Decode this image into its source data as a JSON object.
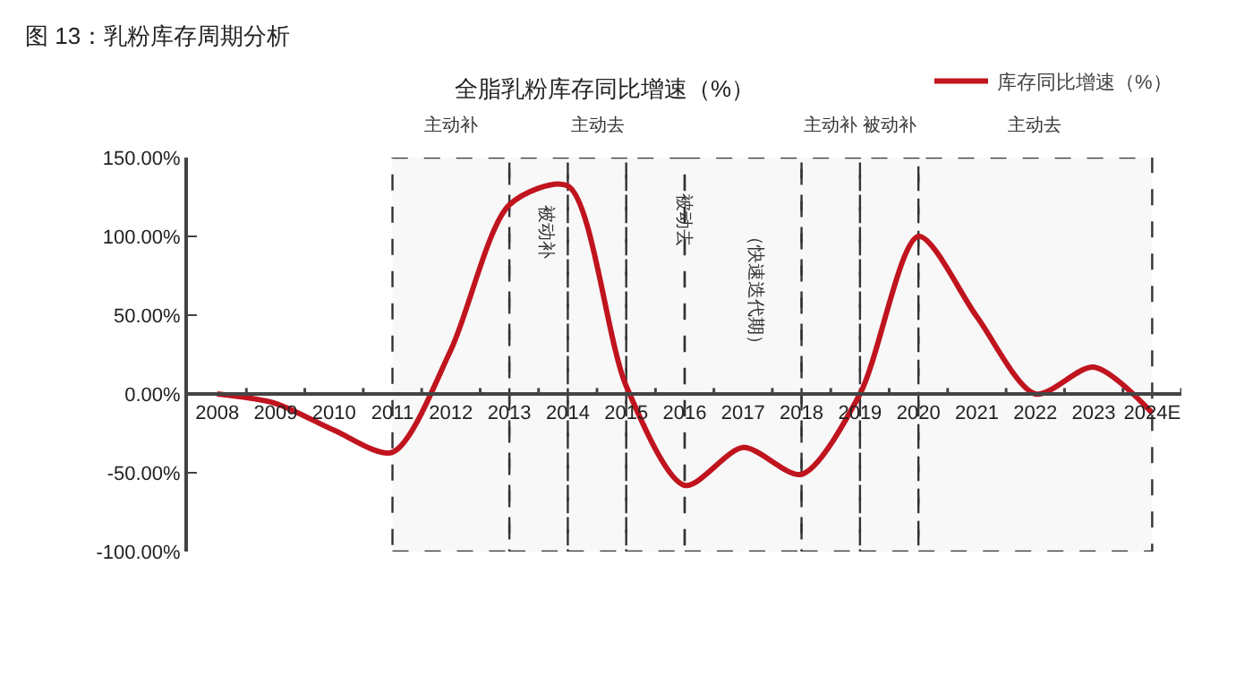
{
  "chart_data": {
    "type": "line",
    "title": "图 13：乳粉库存周期分析",
    "subtitle": "全脂乳粉库存同比增速（%）",
    "categories": [
      "2008",
      "2009",
      "2010",
      "2011",
      "2012",
      "2013",
      "2014",
      "2015",
      "2016",
      "2017",
      "2018",
      "2019",
      "2020",
      "2021",
      "2022",
      "2023",
      "2024E"
    ],
    "series": [
      {
        "name": "库存同比增速（%）",
        "color": "#c0141e",
        "values": [
          0,
          -6,
          -23,
          -37,
          28,
          120,
          132,
          5,
          -58,
          -34,
          -51,
          0,
          100,
          49,
          0,
          17,
          -12
        ]
      }
    ],
    "ylim": [
      -100,
      150
    ],
    "yticks": [
      {
        "value": -100,
        "label": "-100.00%"
      },
      {
        "value": -50,
        "label": "-50.00%"
      },
      {
        "value": 0,
        "label": "0.00%"
      },
      {
        "value": 50,
        "label": "50.00%"
      },
      {
        "value": 100,
        "label": "100.00%"
      },
      {
        "value": 150,
        "label": "150.00%"
      }
    ],
    "bands": [
      {
        "axis": "x",
        "from": "2011",
        "to": "2013",
        "label": "主动补"
      },
      {
        "axis": "x",
        "from": "2013",
        "to": "2014"
      },
      {
        "axis": "x",
        "from": "2014",
        "to": "2015",
        "label": "主动去"
      },
      {
        "axis": "x",
        "from": "2015",
        "to": "2016"
      },
      {
        "axis": "x",
        "from": "2016",
        "to": "2018"
      },
      {
        "axis": "x",
        "from": "2018",
        "to": "2019",
        "label": "主动补"
      },
      {
        "axis": "x",
        "from": "2019",
        "to": "2020",
        "label": "被动补"
      },
      {
        "axis": "x",
        "from": "2020",
        "to": "2024E",
        "label": "主动去"
      }
    ],
    "annotations": [
      "被动补",
      "被动去",
      "（快速迭代期）"
    ],
    "grid": false,
    "legend": "top right",
    "marker": "none",
    "line_style": "solid"
  }
}
